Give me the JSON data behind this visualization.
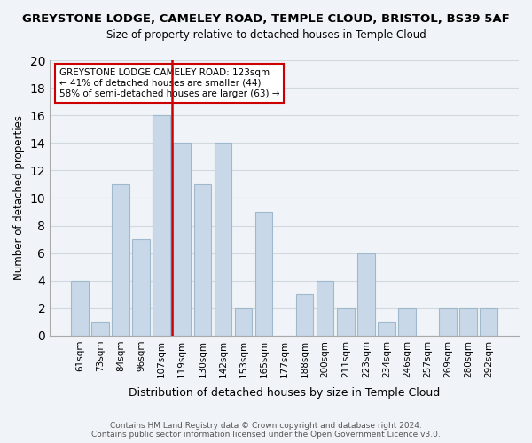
{
  "title": "GREYSTONE LODGE, CAMELEY ROAD, TEMPLE CLOUD, BRISTOL, BS39 5AF",
  "subtitle": "Size of property relative to detached houses in Temple Cloud",
  "xlabel": "Distribution of detached houses by size in Temple Cloud",
  "ylabel": "Number of detached properties",
  "bar_labels": [
    "61sqm",
    "73sqm",
    "84sqm",
    "96sqm",
    "107sqm",
    "119sqm",
    "130sqm",
    "142sqm",
    "153sqm",
    "165sqm",
    "177sqm",
    "188sqm",
    "200sqm",
    "211sqm",
    "223sqm",
    "234sqm",
    "246sqm",
    "257sqm",
    "269sqm",
    "280sqm",
    "292sqm"
  ],
  "bar_values": [
    4,
    1,
    11,
    7,
    16,
    14,
    11,
    14,
    2,
    9,
    0,
    3,
    4,
    2,
    6,
    1,
    2,
    0,
    2,
    2,
    2
  ],
  "bar_color": "#c8d8e8",
  "bar_edge_color": "#a0b8cc",
  "vline_x": 4.5,
  "vline_color": "#cc0000",
  "ylim": [
    0,
    20
  ],
  "yticks": [
    0,
    2,
    4,
    6,
    8,
    10,
    12,
    14,
    16,
    18,
    20
  ],
  "annotation_title": "GREYSTONE LODGE CAMELEY ROAD: 123sqm",
  "annotation_line1": "← 41% of detached houses are smaller (44)",
  "annotation_line2": "58% of semi-detached houses are larger (63) →",
  "annotation_box_color": "#ffffff",
  "annotation_box_edge": "#cc0000",
  "grid_color": "#d0d8e0",
  "footer1": "Contains HM Land Registry data © Crown copyright and database right 2024.",
  "footer2": "Contains public sector information licensed under the Open Government Licence v3.0.",
  "bg_color": "#f0f4f8"
}
